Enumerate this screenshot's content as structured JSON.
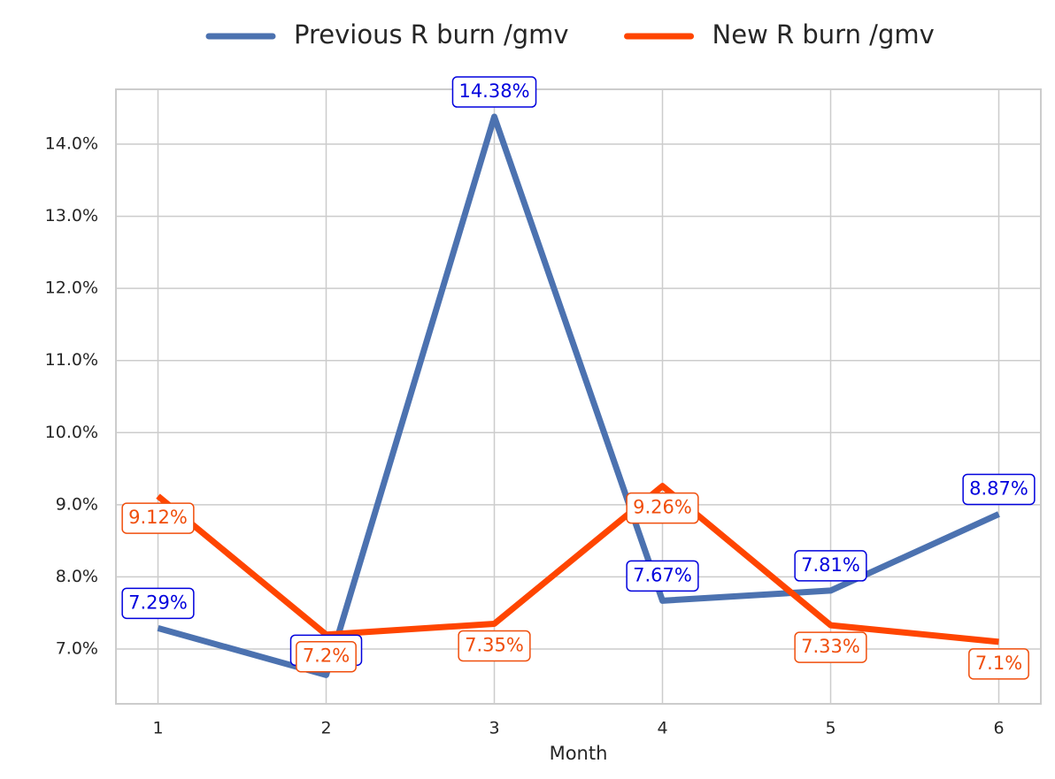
{
  "chart_data": {
    "type": "line",
    "x_label": "Month",
    "x": [
      1,
      2,
      3,
      4,
      5,
      6
    ],
    "xlim": [
      0.75,
      6.25
    ],
    "xticks": [
      1,
      2,
      3,
      4,
      5,
      6
    ],
    "ylim": [
      6.24,
      14.76
    ],
    "yticks": [
      {
        "value": 7,
        "label": "7.0%"
      },
      {
        "value": 8,
        "label": "8.0%"
      },
      {
        "value": 9,
        "label": "9.0%"
      },
      {
        "value": 10,
        "label": "10.0%"
      },
      {
        "value": 11,
        "label": "11.0%"
      },
      {
        "value": 12,
        "label": "12.0%"
      },
      {
        "value": 13,
        "label": "13.0%"
      },
      {
        "value": 14,
        "label": "14.0%"
      }
    ],
    "grid": true,
    "legend": "top",
    "series": [
      {
        "name": "Previous R burn /gmv",
        "color": "#4c72b0",
        "label_color": "#0000dd",
        "values": [
          7.29,
          6.64,
          14.38,
          7.67,
          7.81,
          8.87
        ],
        "value_labels": [
          "7.29%",
          null,
          "14.38%",
          "7.67%",
          "7.81%",
          "8.87%"
        ]
      },
      {
        "name": "New R burn /gmv",
        "color": "#ff4500",
        "label_color": "#f04e0c",
        "values": [
          9.12,
          7.2,
          7.35,
          9.26,
          7.33,
          7.1
        ],
        "value_labels": [
          "9.12%",
          "7.2%",
          "7.35%",
          "9.26%",
          "7.33%",
          "7.1%"
        ]
      }
    ]
  }
}
